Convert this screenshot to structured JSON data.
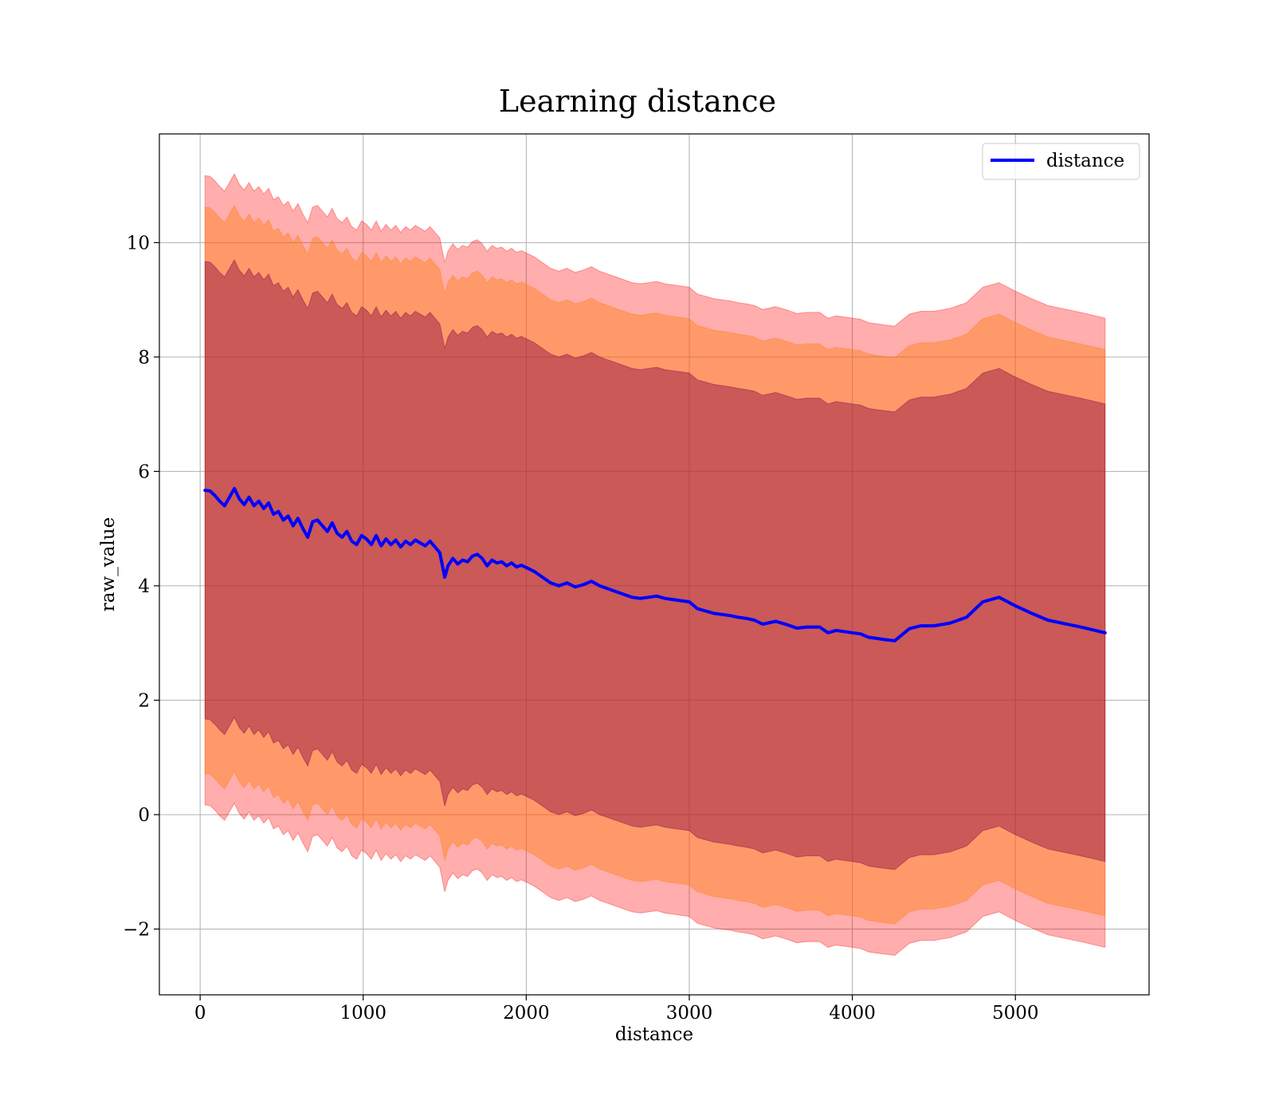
{
  "chart_data": {
    "type": "line",
    "title": "Learning distance",
    "xlabel": "distance",
    "ylabel": "raw_value",
    "xlim": [
      -250,
      5820
    ],
    "ylim": [
      -3.15,
      11.9
    ],
    "xticks": [
      0,
      1000,
      2000,
      3000,
      4000,
      5000
    ],
    "yticks": [
      -2,
      0,
      2,
      4,
      6,
      8,
      10
    ],
    "xtick_labels": [
      "0",
      "1000",
      "2000",
      "3000",
      "4000",
      "5000"
    ],
    "ytick_labels": [
      "−2",
      "0",
      "2",
      "4",
      "6",
      "8",
      "10"
    ],
    "grid": true,
    "legend": {
      "position": "top-right",
      "entries": [
        "distance"
      ]
    },
    "colors": {
      "line": "#0000ff",
      "band_outer": "#ff0000",
      "band_middle": "#ff7f0e",
      "band_inner": "#800040",
      "grid": "#b0b0b0"
    },
    "band_half_widths": {
      "outer": 5.5,
      "middle": 4.95,
      "inner": 4.0
    },
    "series": [
      {
        "name": "distance",
        "x": [
          30,
          60,
          90,
          120,
          150,
          180,
          210,
          240,
          270,
          300,
          330,
          360,
          390,
          420,
          450,
          480,
          510,
          540,
          570,
          600,
          630,
          660,
          690,
          720,
          750,
          780,
          810,
          840,
          870,
          900,
          930,
          960,
          990,
          1020,
          1050,
          1080,
          1110,
          1140,
          1170,
          1200,
          1230,
          1260,
          1290,
          1320,
          1350,
          1380,
          1410,
          1440,
          1470,
          1500,
          1520,
          1550,
          1580,
          1610,
          1640,
          1670,
          1700,
          1730,
          1760,
          1790,
          1820,
          1850,
          1880,
          1910,
          1940,
          1970,
          2000,
          2050,
          2100,
          2150,
          2200,
          2250,
          2300,
          2350,
          2400,
          2450,
          2500,
          2550,
          2600,
          2650,
          2700,
          2750,
          2800,
          2850,
          2900,
          2950,
          3000,
          3050,
          3100,
          3150,
          3200,
          3250,
          3300,
          3350,
          3400,
          3450,
          3530,
          3600,
          3660,
          3720,
          3800,
          3850,
          3900,
          3950,
          4000,
          4050,
          4100,
          4150,
          4200,
          4260,
          4350,
          4420,
          4500,
          4600,
          4700,
          4800,
          4900,
          5000,
          5100,
          5200,
          5300,
          5400,
          5550
        ],
        "values": [
          5.67,
          5.66,
          5.58,
          5.48,
          5.4,
          5.55,
          5.7,
          5.52,
          5.42,
          5.55,
          5.4,
          5.48,
          5.35,
          5.45,
          5.25,
          5.3,
          5.15,
          5.22,
          5.05,
          5.18,
          5.0,
          4.85,
          5.12,
          5.15,
          5.05,
          4.95,
          5.1,
          4.92,
          4.85,
          4.95,
          4.78,
          4.72,
          4.88,
          4.82,
          4.72,
          4.88,
          4.7,
          4.82,
          4.72,
          4.8,
          4.68,
          4.78,
          4.72,
          4.8,
          4.75,
          4.7,
          4.78,
          4.68,
          4.58,
          4.15,
          4.35,
          4.48,
          4.38,
          4.45,
          4.42,
          4.52,
          4.55,
          4.48,
          4.35,
          4.45,
          4.4,
          4.42,
          4.35,
          4.4,
          4.33,
          4.36,
          4.32,
          4.25,
          4.15,
          4.05,
          4.0,
          4.05,
          3.98,
          4.02,
          4.08,
          4.0,
          3.95,
          3.9,
          3.85,
          3.8,
          3.78,
          3.8,
          3.82,
          3.78,
          3.76,
          3.74,
          3.72,
          3.6,
          3.56,
          3.52,
          3.5,
          3.48,
          3.45,
          3.43,
          3.4,
          3.33,
          3.38,
          3.32,
          3.26,
          3.28,
          3.28,
          3.18,
          3.22,
          3.2,
          3.18,
          3.16,
          3.1,
          3.08,
          3.06,
          3.04,
          3.25,
          3.3,
          3.3,
          3.35,
          3.45,
          3.72,
          3.8,
          3.65,
          3.52,
          3.4,
          3.34,
          3.28,
          3.18
        ]
      }
    ]
  }
}
